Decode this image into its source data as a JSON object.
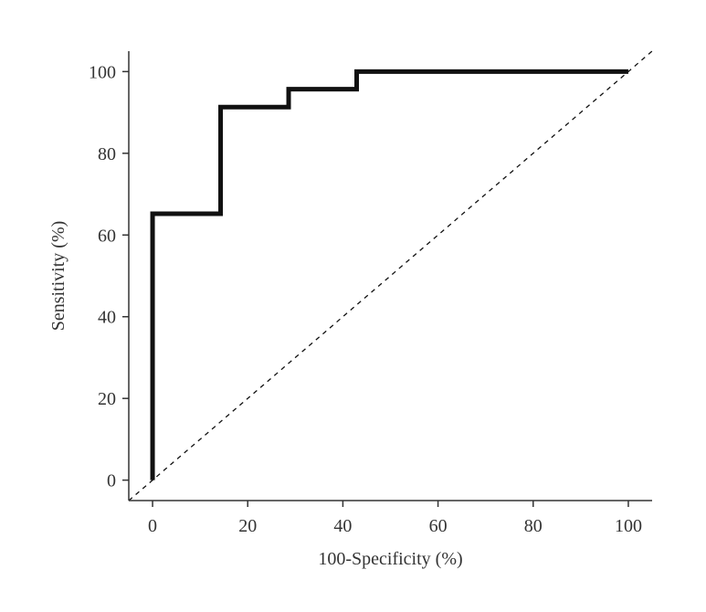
{
  "chart_data": {
    "type": "line",
    "title": "",
    "xlabel": "100-Specificity (%)",
    "ylabel": "Sensitivity (%)",
    "xlim": [
      -5,
      105
    ],
    "ylim": [
      -5,
      105
    ],
    "x_ticks": [
      "0",
      "20",
      "40",
      "60",
      "80",
      "100"
    ],
    "y_ticks": [
      "0",
      "20",
      "40",
      "60",
      "80",
      "100"
    ],
    "grid": false,
    "legend": "none",
    "series": [
      {
        "style": "solid",
        "color": "#111111",
        "points": [
          [
            0,
            0
          ],
          [
            0,
            65.2
          ],
          [
            14.3,
            65.2
          ],
          [
            14.3,
            91.3
          ],
          [
            28.6,
            91.3
          ],
          [
            28.6,
            95.7
          ],
          [
            42.9,
            95.7
          ],
          [
            42.9,
            100
          ],
          [
            100,
            100
          ]
        ]
      },
      {
        "style": "dashed",
        "color": "#111111",
        "points": [
          [
            -5,
            -5
          ],
          [
            105,
            105
          ]
        ]
      }
    ]
  }
}
